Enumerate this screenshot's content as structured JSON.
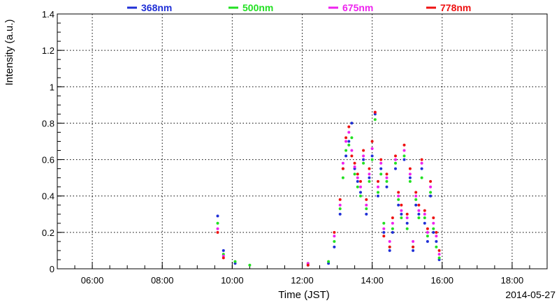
{
  "chart_data": {
    "type": "scatter",
    "xlabel": "Time (JST)",
    "ylabel": "Intensity (a.u.)",
    "date_label": "2014-05-27",
    "xlim": [
      "05:00",
      "19:00"
    ],
    "ylim": [
      0,
      1.4
    ],
    "grid": true,
    "legend_position": "top",
    "x_ticks": [
      "06:00",
      "08:00",
      "10:00",
      "12:00",
      "14:00",
      "16:00",
      "18:00"
    ],
    "y_ticks": [
      "0",
      "0.2",
      "0.4",
      "0.6",
      "0.8",
      "1",
      "1.2",
      "1.4"
    ],
    "series": [
      {
        "name": "368nm",
        "color": "#1f2fd6",
        "x": [
          "09:35",
          "09:45",
          "10:05",
          "12:10",
          "12:45",
          "12:55",
          "13:05",
          "13:10",
          "13:15",
          "13:20",
          "13:25",
          "13:30",
          "13:35",
          "13:40",
          "13:45",
          "13:50",
          "13:55",
          "14:00",
          "14:05",
          "14:10",
          "14:15",
          "14:20",
          "14:25",
          "14:30",
          "14:35",
          "14:40",
          "14:45",
          "14:50",
          "14:55",
          "15:00",
          "15:05",
          "15:10",
          "15:15",
          "15:20",
          "15:25",
          "15:30",
          "15:35",
          "15:40",
          "15:45",
          "15:50",
          "15:55"
        ],
        "y": [
          0.29,
          0.1,
          0.03,
          0.02,
          0.03,
          0.12,
          0.3,
          0.55,
          0.62,
          0.7,
          0.8,
          0.55,
          0.48,
          0.42,
          0.6,
          0.3,
          0.5,
          0.62,
          0.85,
          0.4,
          0.55,
          0.2,
          0.45,
          0.1,
          0.2,
          0.55,
          0.35,
          0.3,
          0.6,
          0.25,
          0.5,
          0.1,
          0.35,
          0.3,
          0.55,
          0.25,
          0.15,
          0.4,
          0.2,
          0.15,
          0.05
        ]
      },
      {
        "name": "500nm",
        "color": "#22e022",
        "x": [
          "09:35",
          "09:45",
          "10:05",
          "10:30",
          "12:10",
          "12:45",
          "12:55",
          "13:05",
          "13:10",
          "13:15",
          "13:20",
          "13:25",
          "13:30",
          "13:35",
          "13:40",
          "13:45",
          "13:50",
          "13:55",
          "14:00",
          "14:05",
          "14:10",
          "14:15",
          "14:20",
          "14:25",
          "14:30",
          "14:35",
          "14:40",
          "14:45",
          "14:50",
          "14:55",
          "15:00",
          "15:05",
          "15:10",
          "15:15",
          "15:20",
          "15:25",
          "15:30",
          "15:35",
          "15:40",
          "15:45",
          "15:50",
          "15:55"
        ],
        "y": [
          0.25,
          0.08,
          0.04,
          0.02,
          0.03,
          0.04,
          0.15,
          0.33,
          0.5,
          0.65,
          0.68,
          0.72,
          0.52,
          0.45,
          0.4,
          0.58,
          0.33,
          0.48,
          0.6,
          0.82,
          0.42,
          0.52,
          0.25,
          0.48,
          0.12,
          0.22,
          0.58,
          0.38,
          0.28,
          0.62,
          0.22,
          0.48,
          0.12,
          0.38,
          0.28,
          0.5,
          0.28,
          0.18,
          0.42,
          0.22,
          0.12,
          0.06
        ]
      },
      {
        "name": "675nm",
        "color": "#ee22ee",
        "x": [
          "09:35",
          "09:45",
          "12:10",
          "12:55",
          "13:05",
          "13:10",
          "13:15",
          "13:20",
          "13:25",
          "13:30",
          "13:35",
          "13:40",
          "13:45",
          "13:50",
          "13:55",
          "14:00",
          "14:05",
          "14:10",
          "14:15",
          "14:20",
          "14:25",
          "14:30",
          "14:35",
          "14:40",
          "14:45",
          "14:50",
          "14:55",
          "15:00",
          "15:05",
          "15:10",
          "15:15",
          "15:20",
          "15:25",
          "15:30",
          "15:35",
          "15:40",
          "15:45",
          "15:50",
          "15:55"
        ],
        "y": [
          0.22,
          0.07,
          0.03,
          0.18,
          0.35,
          0.58,
          0.7,
          0.75,
          0.65,
          0.56,
          0.5,
          0.45,
          0.62,
          0.35,
          0.52,
          0.66,
          0.86,
          0.45,
          0.58,
          0.22,
          0.5,
          0.15,
          0.25,
          0.6,
          0.4,
          0.32,
          0.65,
          0.28,
          0.52,
          0.15,
          0.4,
          0.32,
          0.58,
          0.3,
          0.2,
          0.45,
          0.25,
          0.18,
          0.08
        ]
      },
      {
        "name": "778nm",
        "color": "#ee1111",
        "x": [
          "09:35",
          "09:45",
          "12:10",
          "12:55",
          "13:05",
          "13:10",
          "13:15",
          "13:20",
          "13:25",
          "13:30",
          "13:35",
          "13:40",
          "13:45",
          "13:50",
          "13:55",
          "14:00",
          "14:05",
          "14:10",
          "14:15",
          "14:20",
          "14:25",
          "14:30",
          "14:35",
          "14:40",
          "14:45",
          "14:50",
          "14:55",
          "15:00",
          "15:05",
          "15:10",
          "15:15",
          "15:20",
          "15:25",
          "15:30",
          "15:35",
          "15:40",
          "15:45",
          "15:50",
          "15:55"
        ],
        "y": [
          0.2,
          0.06,
          0.02,
          0.2,
          0.38,
          0.55,
          0.72,
          0.78,
          0.62,
          0.58,
          0.52,
          0.48,
          0.65,
          0.38,
          0.55,
          0.7,
          0.86,
          0.48,
          0.6,
          0.18,
          0.52,
          0.12,
          0.28,
          0.62,
          0.42,
          0.35,
          0.68,
          0.3,
          0.55,
          0.12,
          0.42,
          0.35,
          0.6,
          0.32,
          0.22,
          0.48,
          0.28,
          0.2,
          0.1
        ]
      }
    ]
  }
}
